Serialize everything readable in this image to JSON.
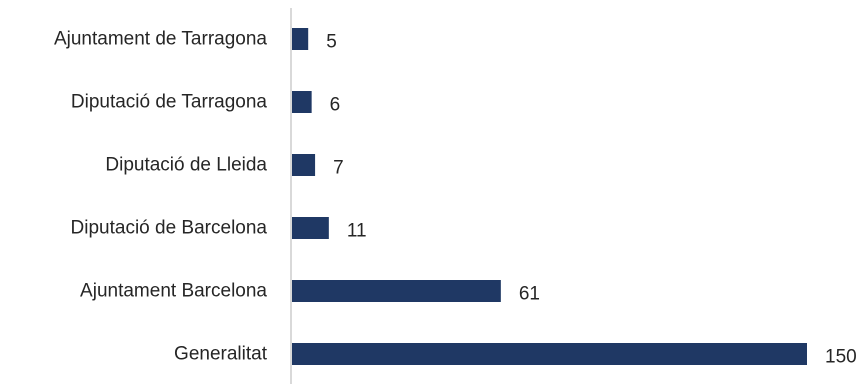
{
  "chart_data": {
    "type": "bar",
    "orientation": "horizontal",
    "categories": [
      "Ajuntament de Tarragona",
      "Diputació de Tarragona",
      "Diputació de Lleida",
      "Diputació de Barcelona",
      "Ajuntament Barcelona",
      "Generalitat"
    ],
    "values": [
      5,
      6,
      7,
      11,
      61,
      150
    ],
    "title": "",
    "xlabel": "",
    "ylabel": "",
    "xlim": [
      0,
      150
    ],
    "grid": false,
    "legend": "none",
    "bar_color": "#1f3864",
    "axis_color": "#d9d9d9",
    "data_labels": true
  }
}
